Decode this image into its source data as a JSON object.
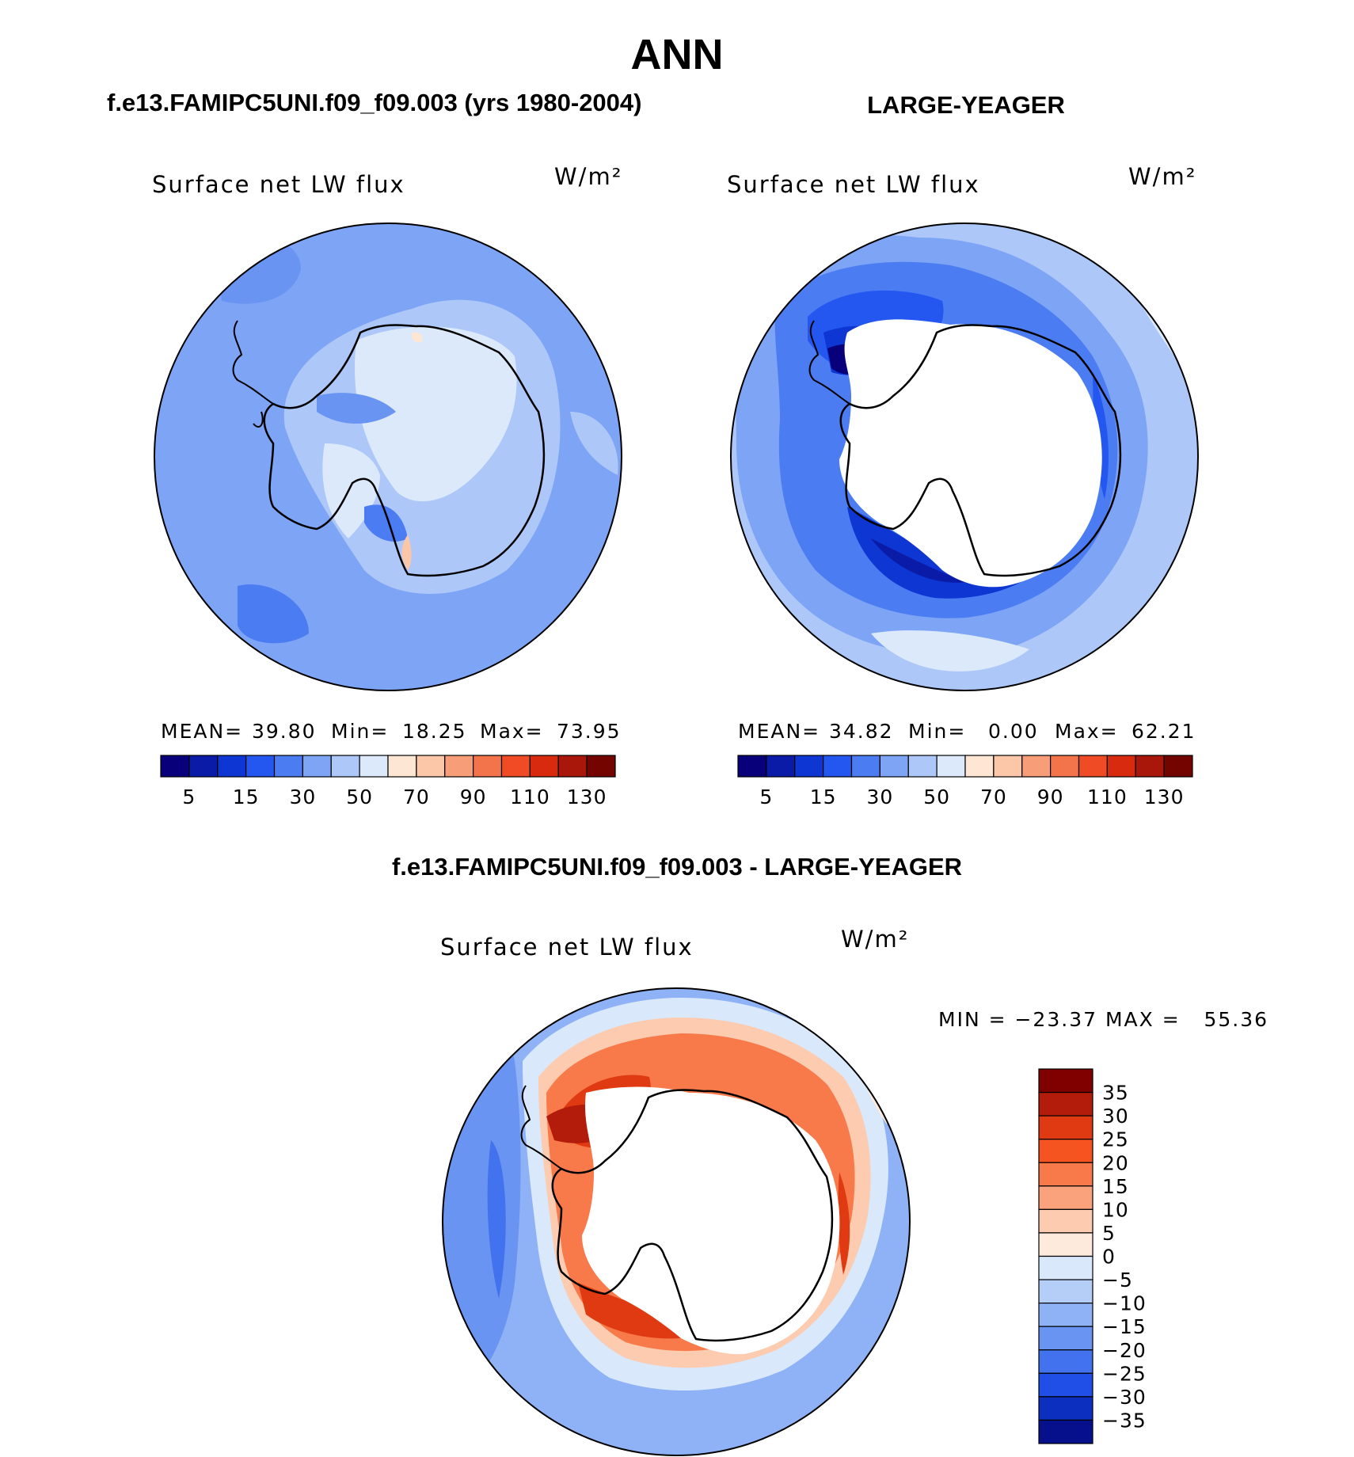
{
  "title": "ANN",
  "panel_left": {
    "header": "f.e13.FAMIPC5UNI.f09_f09.003 (yrs 1980-2004)",
    "variable": "Surface net LW flux",
    "units": "W/m²",
    "stats": {
      "mean_label": "MEAN=",
      "mean": "39.80",
      "min_label": "Min=",
      "min": "18.25",
      "max_label": "Max=",
      "max": "73.95"
    }
  },
  "panel_right": {
    "header": "LARGE-YEAGER",
    "variable": "Surface net LW flux",
    "units": "W/m²",
    "stats": {
      "mean_label": "MEAN=",
      "mean": "34.82",
      "min_label": "Min=",
      "min": "0.00",
      "max_label": "Max=",
      "max": "62.21"
    }
  },
  "panel_diff": {
    "header": "f.e13.FAMIPC5UNI.f09_f09.003 - LARGE-YEAGER",
    "variable": "Surface net LW flux",
    "units": "W/m²",
    "minmax": "MIN = −23.37 MAX =   55.36"
  },
  "chart_data": [
    {
      "type": "heatmap",
      "projection": "south-polar-stereographic",
      "title": "f.e13.FAMIPC5UNI.f09_f09.003 (yrs 1980-2004)",
      "variable": "Surface net LW flux",
      "units": "W/m2",
      "mean": 39.8,
      "min": 18.25,
      "max": 73.95,
      "colorbar": {
        "levels": [
          5,
          10,
          15,
          20,
          30,
          40,
          50,
          60,
          70,
          80,
          90,
          100,
          110,
          120,
          130
        ],
        "tick_labels": [
          "5",
          "15",
          "30",
          "50",
          "70",
          "90",
          "110",
          "130"
        ],
        "colors": [
          "#08007a",
          "#0a1ba8",
          "#0d36d2",
          "#2357f0",
          "#4c7cf2",
          "#7da4f5",
          "#adc8f8",
          "#dbe9fb",
          "#fde6d4",
          "#fbc7a8",
          "#f79e78",
          "#f3734b",
          "#ef4b25",
          "#d72a0f",
          "#a9160a",
          "#740400"
        ]
      }
    },
    {
      "type": "heatmap",
      "projection": "south-polar-stereographic",
      "title": "LARGE-YEAGER",
      "variable": "Surface net LW flux",
      "units": "W/m2",
      "mean": 34.82,
      "min": 0.0,
      "max": 62.21,
      "colorbar": {
        "levels": [
          5,
          10,
          15,
          20,
          30,
          40,
          50,
          60,
          70,
          80,
          90,
          100,
          110,
          120,
          130
        ],
        "tick_labels": [
          "5",
          "15",
          "30",
          "50",
          "70",
          "90",
          "110",
          "130"
        ],
        "colors": [
          "#08007a",
          "#0a1ba8",
          "#0d36d2",
          "#2357f0",
          "#4c7cf2",
          "#7da4f5",
          "#adc8f8",
          "#dbe9fb",
          "#fde6d4",
          "#fbc7a8",
          "#f79e78",
          "#f3734b",
          "#ef4b25",
          "#d72a0f",
          "#a9160a",
          "#740400"
        ]
      }
    },
    {
      "type": "heatmap",
      "projection": "south-polar-stereographic",
      "title": "f.e13.FAMIPC5UNI.f09_f09.003 - LARGE-YEAGER",
      "variable": "Surface net LW flux",
      "units": "W/m2",
      "min": -23.37,
      "max": 55.36,
      "colorbar": {
        "orientation": "vertical",
        "tick_labels": [
          "35",
          "30",
          "25",
          "20",
          "15",
          "10",
          "5",
          "0",
          "−5",
          "−10",
          "−15",
          "−20",
          "−25",
          "−30",
          "−35"
        ],
        "colors": [
          "#800000",
          "#b31b0a",
          "#df3a12",
          "#f5531f",
          "#f87a4b",
          "#faa27c",
          "#fccbb0",
          "#fdeadd",
          "#d9e8fa",
          "#b4cef8",
          "#8eb2f5",
          "#6994f1",
          "#4272ee",
          "#1f4fe6",
          "#0d2fc0",
          "#06108d"
        ]
      }
    }
  ]
}
